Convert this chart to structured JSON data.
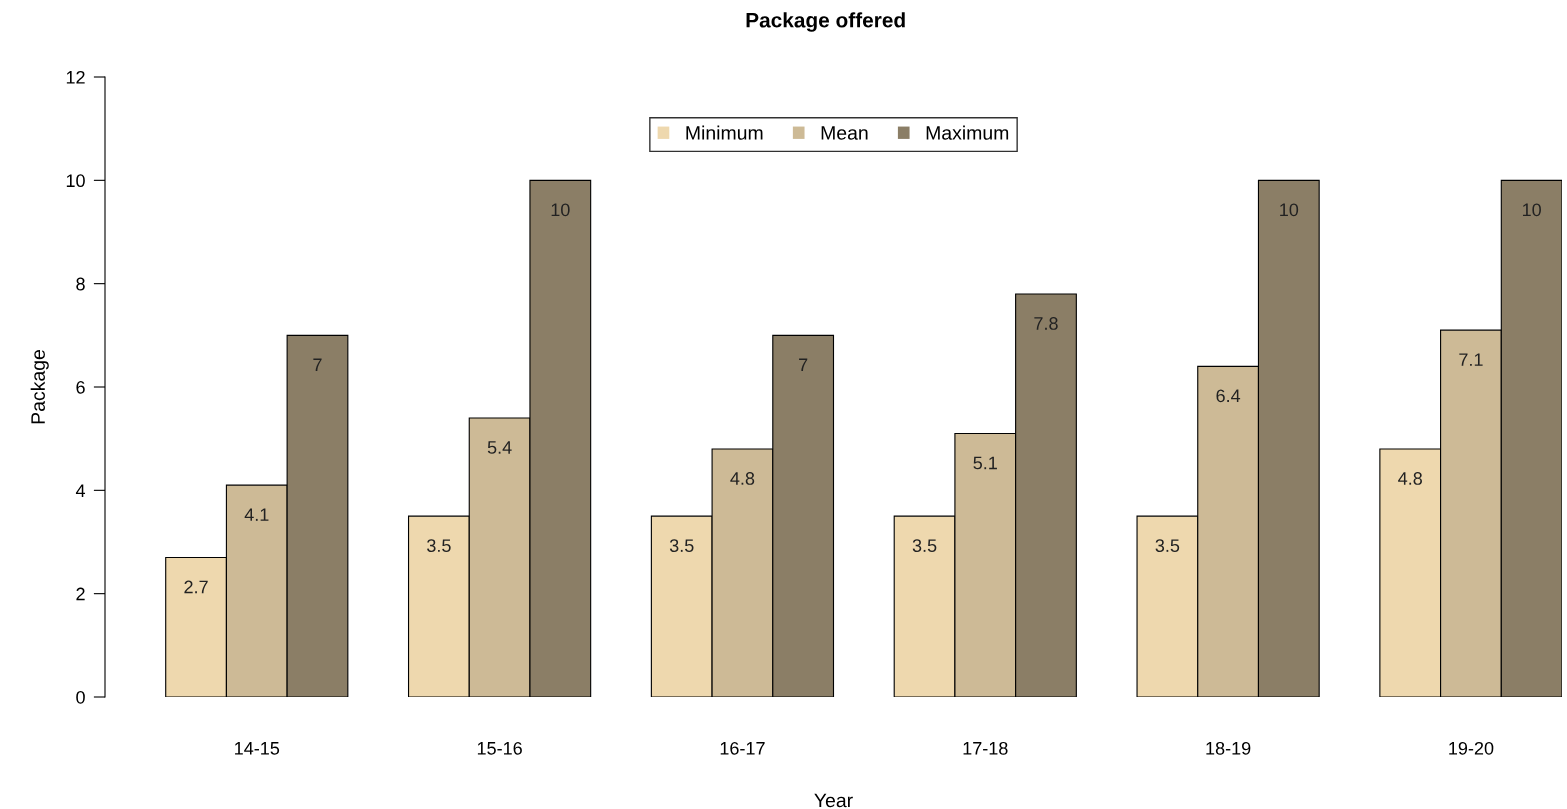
{
  "chart_data": {
    "type": "bar",
    "title": "Package offered",
    "xlabel": "Year",
    "ylabel": "Package",
    "categories": [
      "14-15",
      "15-16",
      "16-17",
      "17-18",
      "18-19",
      "19-20"
    ],
    "series": [
      {
        "name": "Minimum",
        "color": "#eed8ae",
        "values": [
          2.7,
          3.5,
          3.5,
          3.5,
          3.5,
          4.8
        ]
      },
      {
        "name": "Mean",
        "color": "#cdba96",
        "values": [
          4.1,
          5.4,
          4.8,
          5.1,
          6.4,
          7.1
        ]
      },
      {
        "name": "Maximum",
        "color": "#8b7e66",
        "values": [
          7,
          10,
          7,
          7.8,
          10,
          10
        ]
      }
    ],
    "ylim": [
      0,
      12
    ],
    "yticks": [
      0,
      2,
      4,
      6,
      8,
      10,
      12
    ],
    "data_labels": true,
    "legend": "top",
    "grid": false
  }
}
